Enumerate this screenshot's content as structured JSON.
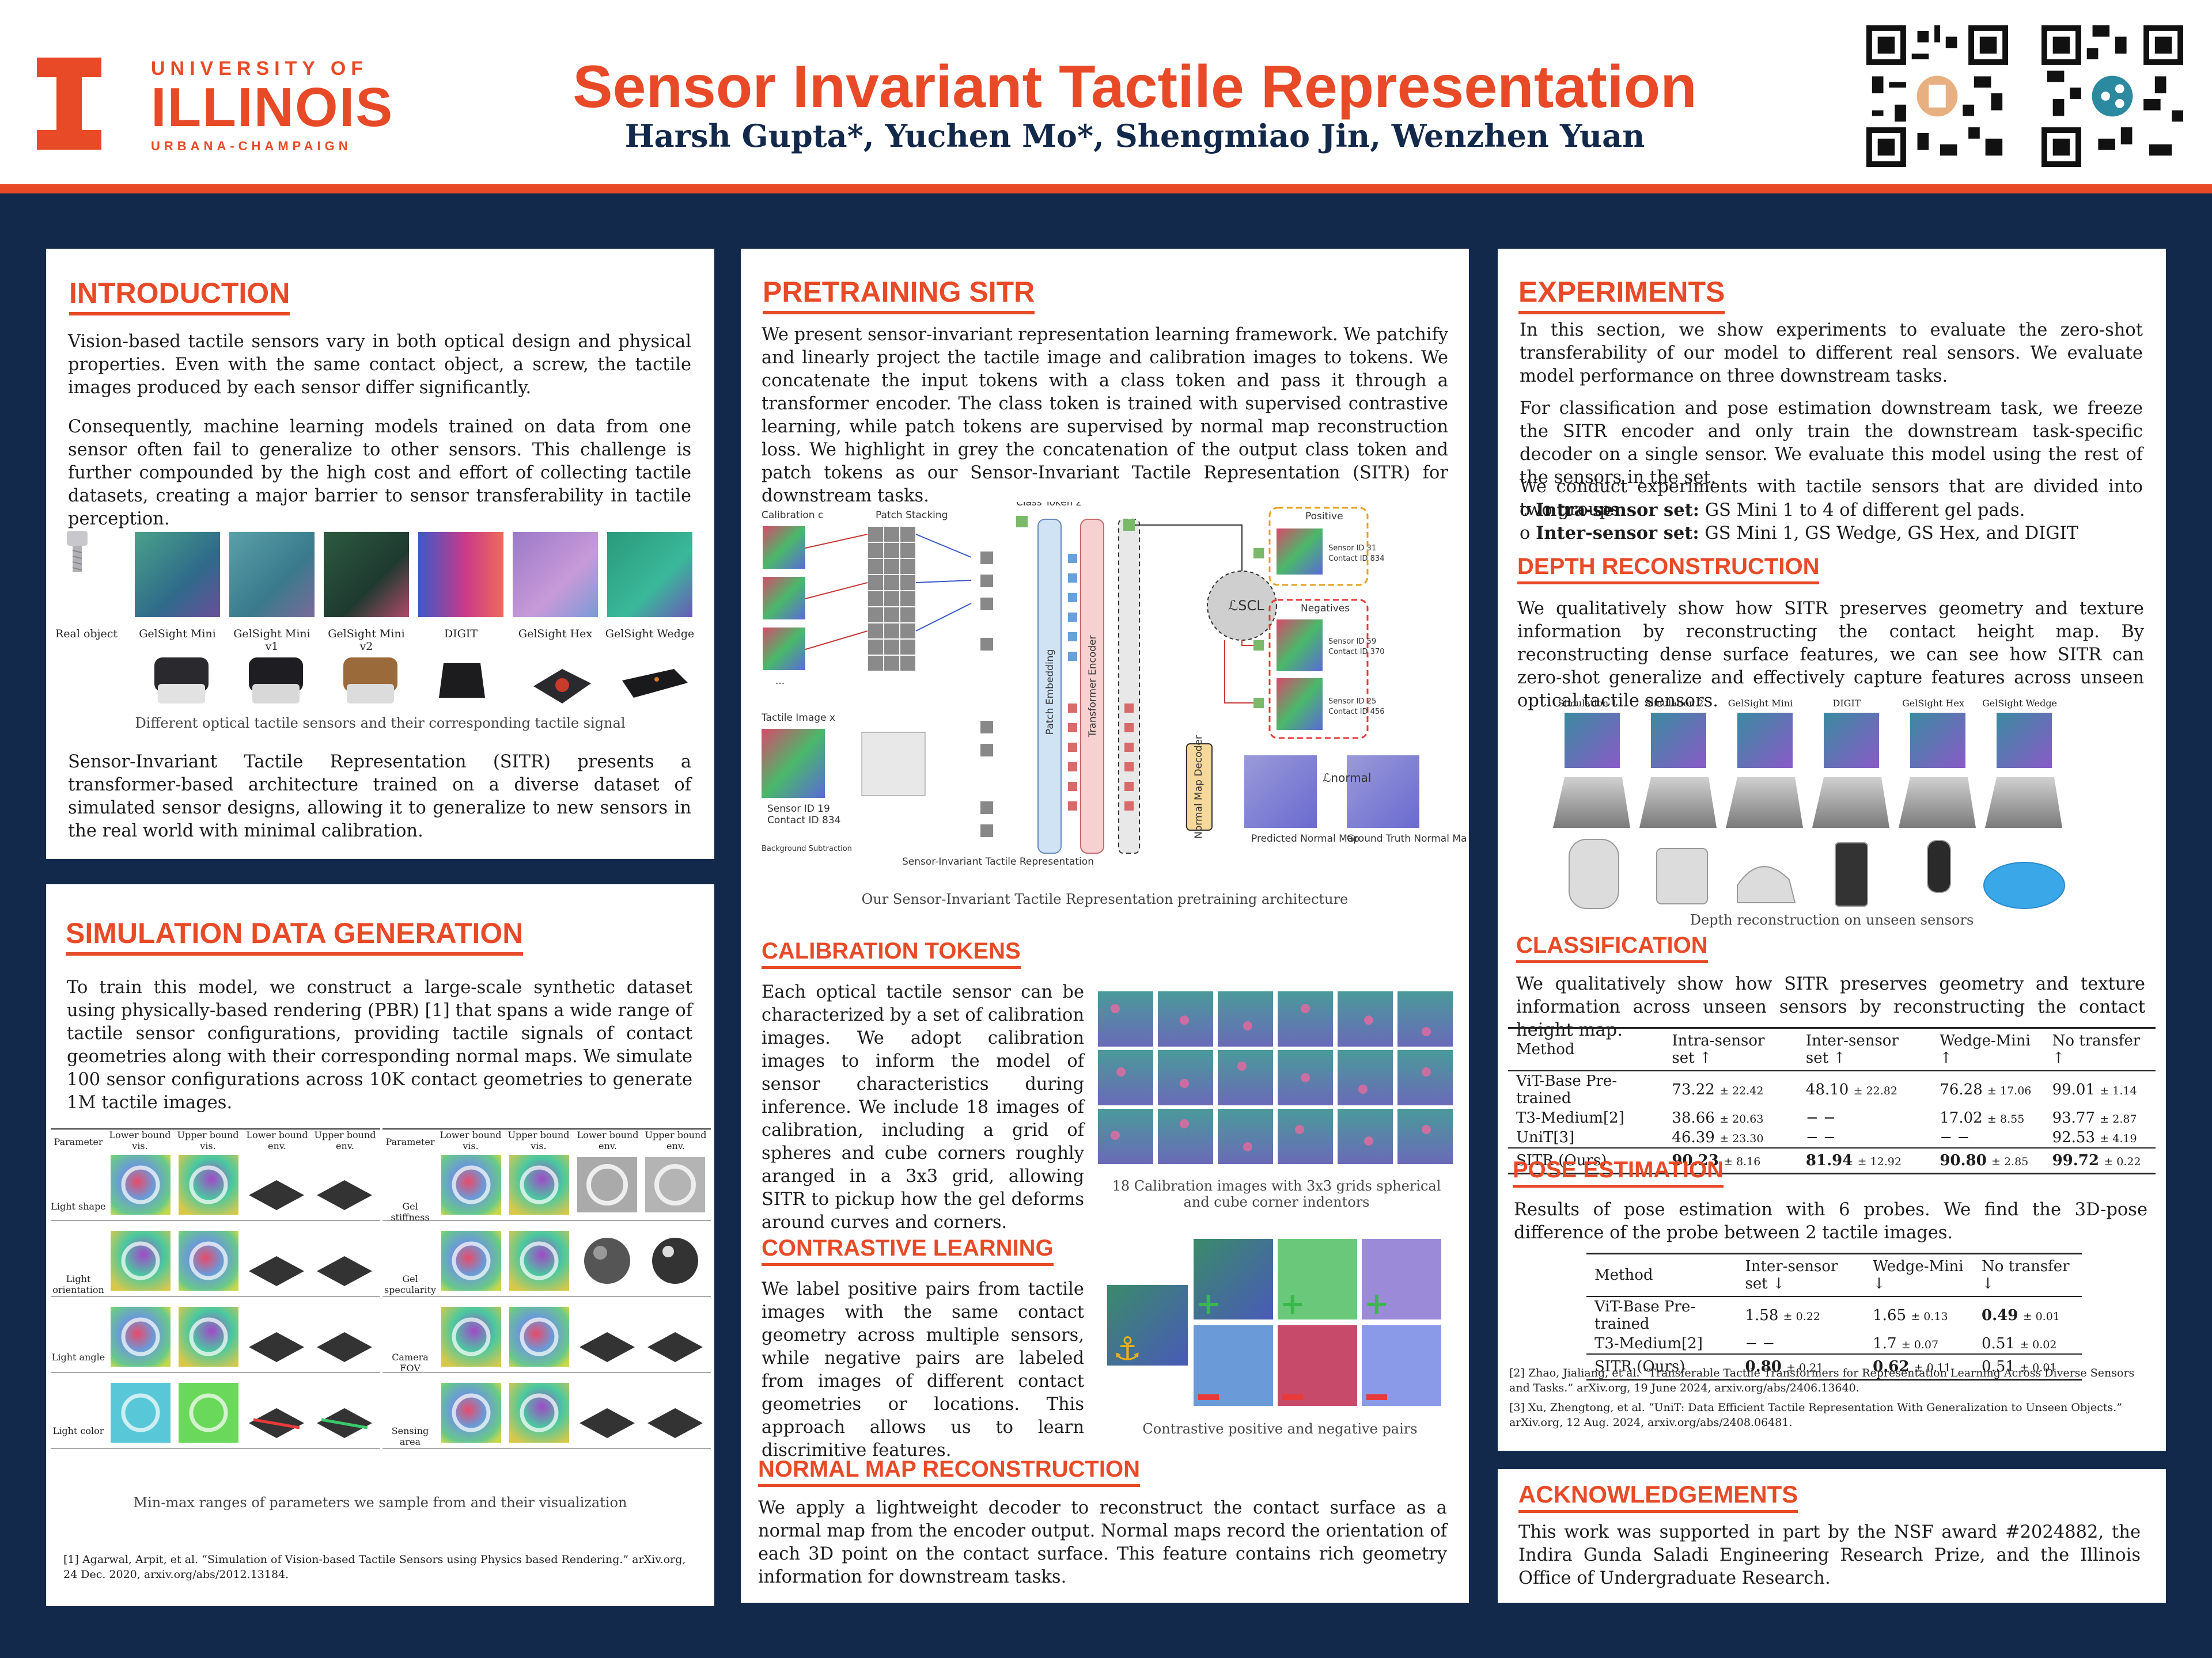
{
  "header": {
    "logo_top": "UNIVERSITY OF",
    "logo_mid": "ILLINOIS",
    "logo_bot": "URBANA-CHAMPAIGN",
    "title": "Sensor Invariant Tactile Representation",
    "authors": "Harsh Gupta*, Yuchen Mo*, Shengmiao Jin, Wenzhen Yuan",
    "qr_icons": [
      "paper-icon",
      "share-icon"
    ]
  },
  "colors": {
    "accent": "#e84a27",
    "navy": "#13294b",
    "bg": "#13294b"
  },
  "intro": {
    "title": "INTRODUCTION",
    "p1": "Vision-based tactile sensors vary in both optical design and physical properties. Even with the same contact object, a screw, the tactile images produced by each sensor differ significantly.",
    "p2": "Consequently, machine learning models trained on data from one sensor often fail to generalize to other sensors. This challenge is further compounded by the high cost and effort of collecting tactile datasets, creating a major barrier to sensor transferability in tactile perception.",
    "fig_labels": [
      "Real object",
      "GelSight Mini",
      "GelSight Mini v1",
      "GelSight Mini v2",
      "DIGIT",
      "GelSight Hex",
      "GelSight Wedge"
    ],
    "fig_caption": "Different optical tactile sensors and their corresponding tactile signal",
    "p3": "Sensor-Invariant Tactile Representation (SITR) presents a transformer-based architecture trained on a diverse dataset of simulated sensor designs, allowing it to generalize to new sensors in the real world with minimal calibration."
  },
  "simulation": {
    "title": "SIMULATION DATA GENERATION",
    "p1": "To train this model, we construct a large-scale synthetic dataset using physically-based rendering (PBR) [1] that spans a wide range of tactile sensor configurations, providing tactile signals of contact geometries along with their corresponding normal maps. We simulate 100 sensor configurations across 10K contact geometries to generate 1M tactile images.",
    "table_headers": [
      "Parameter",
      "Lower bound vis.",
      "Upper bound vis.",
      "Lower bound env.",
      "Upper bound env."
    ],
    "left_params": [
      "Light shape",
      "Light orientation",
      "Light angle",
      "Light color"
    ],
    "right_params": [
      "Gel stiffness",
      "Gel specularity",
      "Camera FOV",
      "Sensing area"
    ],
    "caption": "Min-max ranges of parameters we sample from and their visualization",
    "ref": "[1] Agarwal, Arpit, et al. “Simulation of Vision-based Tactile Sensors using Physics based Rendering.” arXiv.org, 24 Dec. 2020, arxiv.org/abs/2012.13184."
  },
  "pretraining": {
    "title": "PRETRAINING SITR",
    "p1": "We present sensor-invariant representation learning framework. We patchify and linearly project the tactile image and calibration images to tokens. We concatenate the input tokens with a class token and pass it through a transformer encoder. The class token is trained with supervised contrastive learning, while patch tokens are supervised by normal map reconstruction loss. We highlight in grey the concatenation of the output class token and patch tokens as our Sensor-Invariant Tactile Representation (SITR) for downstream tasks.",
    "diagram": {
      "calibration": "Calibration c",
      "patch_stacking": "Patch Stacking",
      "class_token": "Class Token z",
      "positive": "Positive",
      "negatives": "Negatives",
      "pos_id": "Sensor ID 31",
      "pos_contact": "Contact ID 834",
      "neg1_id": "Sensor ID 59",
      "neg1_contact": "Contact ID 370",
      "neg2_id": "Sensor ID 25",
      "neg2_contact": "Contact ID 456",
      "tactile_image": "Tactile Image x",
      "tactile_id": "Sensor ID 19",
      "tactile_contact": "Contact ID 834",
      "bg_sub": "Background Subtraction",
      "patch_embedding": "Patch Embedding",
      "transformer": "Transformer Encoder",
      "loss_scl": "ℒSCL",
      "decoder": "Normal Map Decoder",
      "loss_normal": "ℒnormal",
      "predicted": "Predicted Normal Map",
      "ground_truth": "Ground Truth Normal Map",
      "sitr_label": "Sensor-Invariant Tactile Representation"
    },
    "caption": "Our Sensor-Invariant Tactile Representation pretraining architecture"
  },
  "calibration": {
    "title": "CALIBRATION TOKENS",
    "p1": "Each optical tactile sensor can be characterized by a set of calibration images. We adopt calibration images to inform the model of sensor characteristics during inference. We include 18 images of calibration, including a grid of spheres and cube corners roughly aranged in a 3x3 grid, allowing SITR to pickup how the gel deforms around curves and corners.",
    "caption": "18 Calibration images with 3x3 grids spherical and cube corner indentors"
  },
  "contrastive": {
    "title": "CONTRASTIVE LEARNING",
    "p1": "We label positive pairs from tactile images with the same contact geometry across multiple sensors, while negative pairs are labeled from images of different contact geometries or locations. This approach allows us to learn discrimitive features.",
    "caption": "Contrastive positive and negative pairs"
  },
  "normal_map": {
    "title": "NORMAL MAP RECONSTRUCTION",
    "p1": "We apply a lightweight decoder to reconstruct the contact surface as a normal map from the encoder output. Normal maps record the orientation of each 3D point on the contact surface. This feature contains rich geometry information for downstream tasks."
  },
  "experiments": {
    "title": "EXPERIMENTS",
    "p1": "In this section, we show experiments to evaluate the zero-shot transferability of our model to different real sensors. We evaluate model performance on three downstream tasks.",
    "p2": "For classification and pose estimation downstream task, we freeze the SITR encoder and only train the downstream task-specific decoder on a single sensor. We evaluate this model using the rest of the sensors in the set.",
    "p3": "We conduct experiments with tactile sensors that are divided into two groups:",
    "g1_label": "Intra-sensor set:",
    "g1_text": "GS Mini 1 to 4 of different gel pads.",
    "g2_label": "Inter-sensor set:",
    "g2_text": "GS Mini 1, GS Wedge, GS Hex, and DIGIT",
    "bullet": "o"
  },
  "depth": {
    "title": "DEPTH RECONSTRUCTION",
    "p1": "We qualitatively show how SITR preserves geometry and texture information by reconstructing the contact height map. By reconstructing dense surface features, we can see how SITR can zero-shot generalize and effectively capture features across unseen optical tactile sensors.",
    "columns": [
      "Simulation 1",
      "Simulation 2",
      "GelSight Mini",
      "DIGIT",
      "GelSight Hex",
      "GelSight Wedge"
    ],
    "caption": "Depth reconstruction on unseen sensors"
  },
  "classification": {
    "title": "CLASSIFICATION",
    "p1": "We qualitatively show how SITR preserves geometry and texture information across unseen sensors by reconstructing the contact height map.",
    "headers": [
      "Method",
      "Intra-sensor set ↑",
      "Inter-sensor set ↑",
      "Wedge-Mini ↑",
      "No transfer ↑"
    ],
    "rows": [
      [
        "ViT-Base Pre-trained",
        "73.22",
        "± 22.42",
        "48.10",
        "± 22.82",
        "76.28",
        "± 17.06",
        "99.01",
        "± 1.14"
      ],
      [
        "T3-Medium[2]",
        "38.66",
        "± 20.63",
        "− −",
        "",
        "17.02",
        "± 8.55",
        "93.77",
        "± 2.87"
      ],
      [
        "UniT[3]",
        "46.39",
        "± 23.30",
        "− −",
        "",
        "− −",
        "",
        "92.53",
        "± 4.19"
      ]
    ],
    "best": [
      "SITR (Ours)",
      "90.23",
      "± 8.16",
      "81.94",
      "± 12.92",
      "90.80",
      "± 2.85",
      "99.72",
      "± 0.22"
    ]
  },
  "pose": {
    "title": "POSE ESTIMATION",
    "p1": "Results of pose estimation with 6 probes. We find the 3D-pose difference of the probe between 2 tactile images.",
    "headers": [
      "Method",
      "Inter-sensor set ↓",
      "Wedge-Mini ↓",
      "No transfer ↓"
    ],
    "rows": [
      [
        "ViT-Base Pre-trained",
        "1.58",
        "± 0.22",
        "1.65",
        "± 0.13",
        "0.49",
        "± 0.01"
      ],
      [
        "T3-Medium[2]",
        "− −",
        "",
        "1.7",
        "± 0.07",
        "0.51",
        "± 0.02"
      ]
    ],
    "best": [
      "SITR (Ours)",
      "0.80",
      "± 0.21",
      "0.62",
      "± 0.11",
      "0.51",
      "± 0.01"
    ],
    "ref2": "[2] Zhao, Jialiang, et al. “Transferable Tactile Transformers for Representation Learning Across Diverse Sensors and Tasks.” arXiv.org, 19 June 2024, arxiv.org/abs/2406.13640.",
    "ref3": "[3] Xu, Zhengtong, et al. “UniT: Data Efficient Tactile Representation With Generalization to Unseen Objects.” arXiv.org, 12 Aug. 2024, arxiv.org/abs/2408.06481."
  },
  "ack": {
    "title": "ACKNOWLEDGEMENTS",
    "p1": "This work was supported in part by the NSF award #2024882, the Indira Gunda Saladi Engineering Research Prize, and the Illinois Office of Undergraduate Research."
  }
}
